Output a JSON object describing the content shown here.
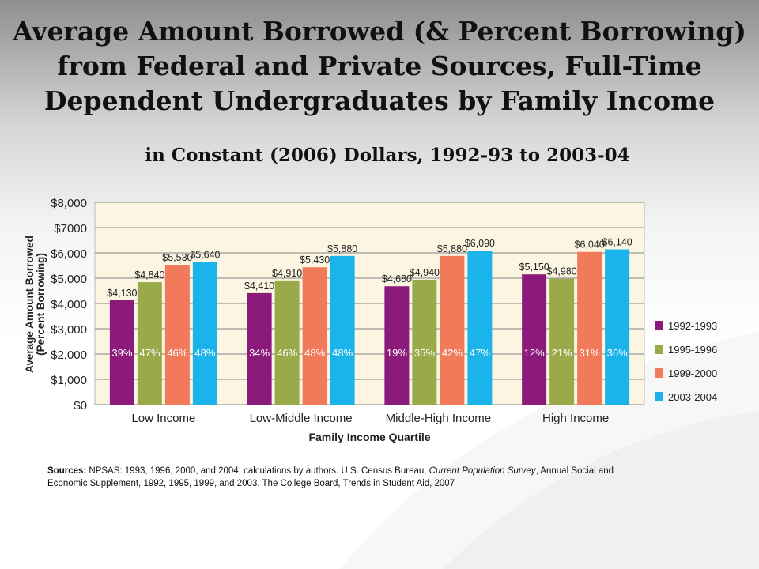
{
  "slide": {
    "title_line1": "Average Amount Borrowed (& Percent Borrowing)",
    "title_line2": "from Federal and Private Sources, Full-Time",
    "title_line3": "Dependent Undergraduates by Family Income",
    "subtitle": "in Constant (2006) Dollars, 1992-93 to 2003-04",
    "sources_label": "Sources:",
    "sources_text_1": " NPSAS: 1993, 1996, 2000, and 2004; calculations by authors. U.S. Census Bureau, ",
    "sources_italic": "Current Population Survey",
    "sources_text_2": ", Annual Social and Economic Supplement, 1992, 1995, 1999, and 2003.  The College Board, Trends in Student Aid, 2007"
  },
  "chart_data": {
    "type": "bar",
    "xlabel": "Family Income Quartile",
    "ylabel_line1": "Average Amount Borrowed",
    "ylabel_line2": "(Percent Borrowing)",
    "ylim": [
      0,
      8000
    ],
    "yticks": [
      "$0",
      "$1,000",
      "$2,000",
      "$3,000",
      "$4,000",
      "$5,000",
      "$6,000",
      "$7000",
      "$8,000"
    ],
    "categories": [
      "Low Income",
      "Low-Middle Income",
      "Middle-High Income",
      "High Income"
    ],
    "legend_position": "right",
    "series": [
      {
        "name": "1992-1993",
        "color": "#8b1a7a",
        "values": [
          4130,
          4410,
          4680,
          5150
        ],
        "value_labels": [
          "$4,130",
          "$4,410",
          "$4,680",
          "$5,150"
        ],
        "percents": [
          "39%",
          "34%",
          "19%",
          "12%"
        ]
      },
      {
        "name": "1995-1996",
        "color": "#9aaa4a",
        "values": [
          4840,
          4910,
          4940,
          4980
        ],
        "value_labels": [
          "$4,840",
          "$4,910",
          "$4,940",
          "$4,980"
        ],
        "percents": [
          "47%",
          "46%",
          "35%",
          "21%"
        ]
      },
      {
        "name": "1999-2000",
        "color": "#f07a5a",
        "values": [
          5530,
          5430,
          5880,
          6040
        ],
        "value_labels": [
          "$5,530",
          "$5,430",
          "$5,880",
          "$6,040"
        ],
        "percents": [
          "46%",
          "48%",
          "42%",
          "31%"
        ]
      },
      {
        "name": "2003-2004",
        "color": "#1ab4ea",
        "values": [
          5640,
          5880,
          6090,
          6140
        ],
        "value_labels": [
          "$5,640",
          "$5,880",
          "$6,090",
          "$6,140"
        ],
        "percents": [
          "48%",
          "48%",
          "47%",
          "36%"
        ]
      }
    ]
  }
}
